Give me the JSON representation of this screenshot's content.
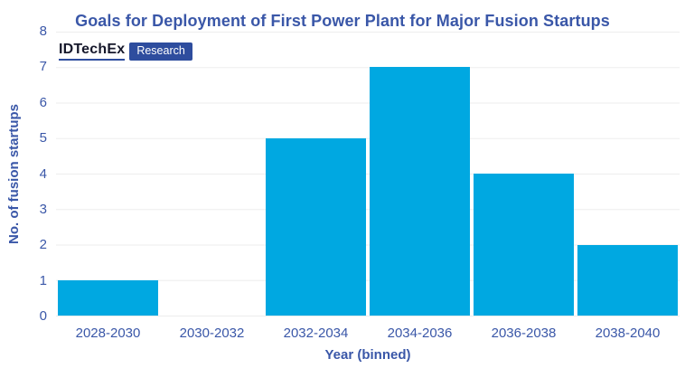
{
  "logo": {
    "brand": "IDTechEx",
    "badge": "Research"
  },
  "colors": {
    "accent": "#3A57A8",
    "bar": "#00A8E1",
    "badge_bg": "#2E4D9E",
    "gridline": "#EDEDED",
    "logo_text": "#16182B",
    "badge_text": "#FFFFFF",
    "background": "#FFFFFF"
  },
  "chart_data": {
    "type": "bar",
    "title": "Goals for Deployment of First Power Plant for Major Fusion Startups",
    "categories": [
      "2028-2030",
      "2030-2032",
      "2032-2034",
      "2034-2036",
      "2036-2038",
      "2038-2040"
    ],
    "values": [
      1,
      0,
      5,
      7,
      4,
      2
    ],
    "xlabel": "Year (binned)",
    "ylabel": "No. of fusion startups",
    "ylim": [
      0,
      8
    ],
    "yticks": [
      0,
      1,
      2,
      3,
      4,
      5,
      6,
      7,
      8
    ],
    "grid": true,
    "gridlines": "horizontal",
    "legend": false
  }
}
